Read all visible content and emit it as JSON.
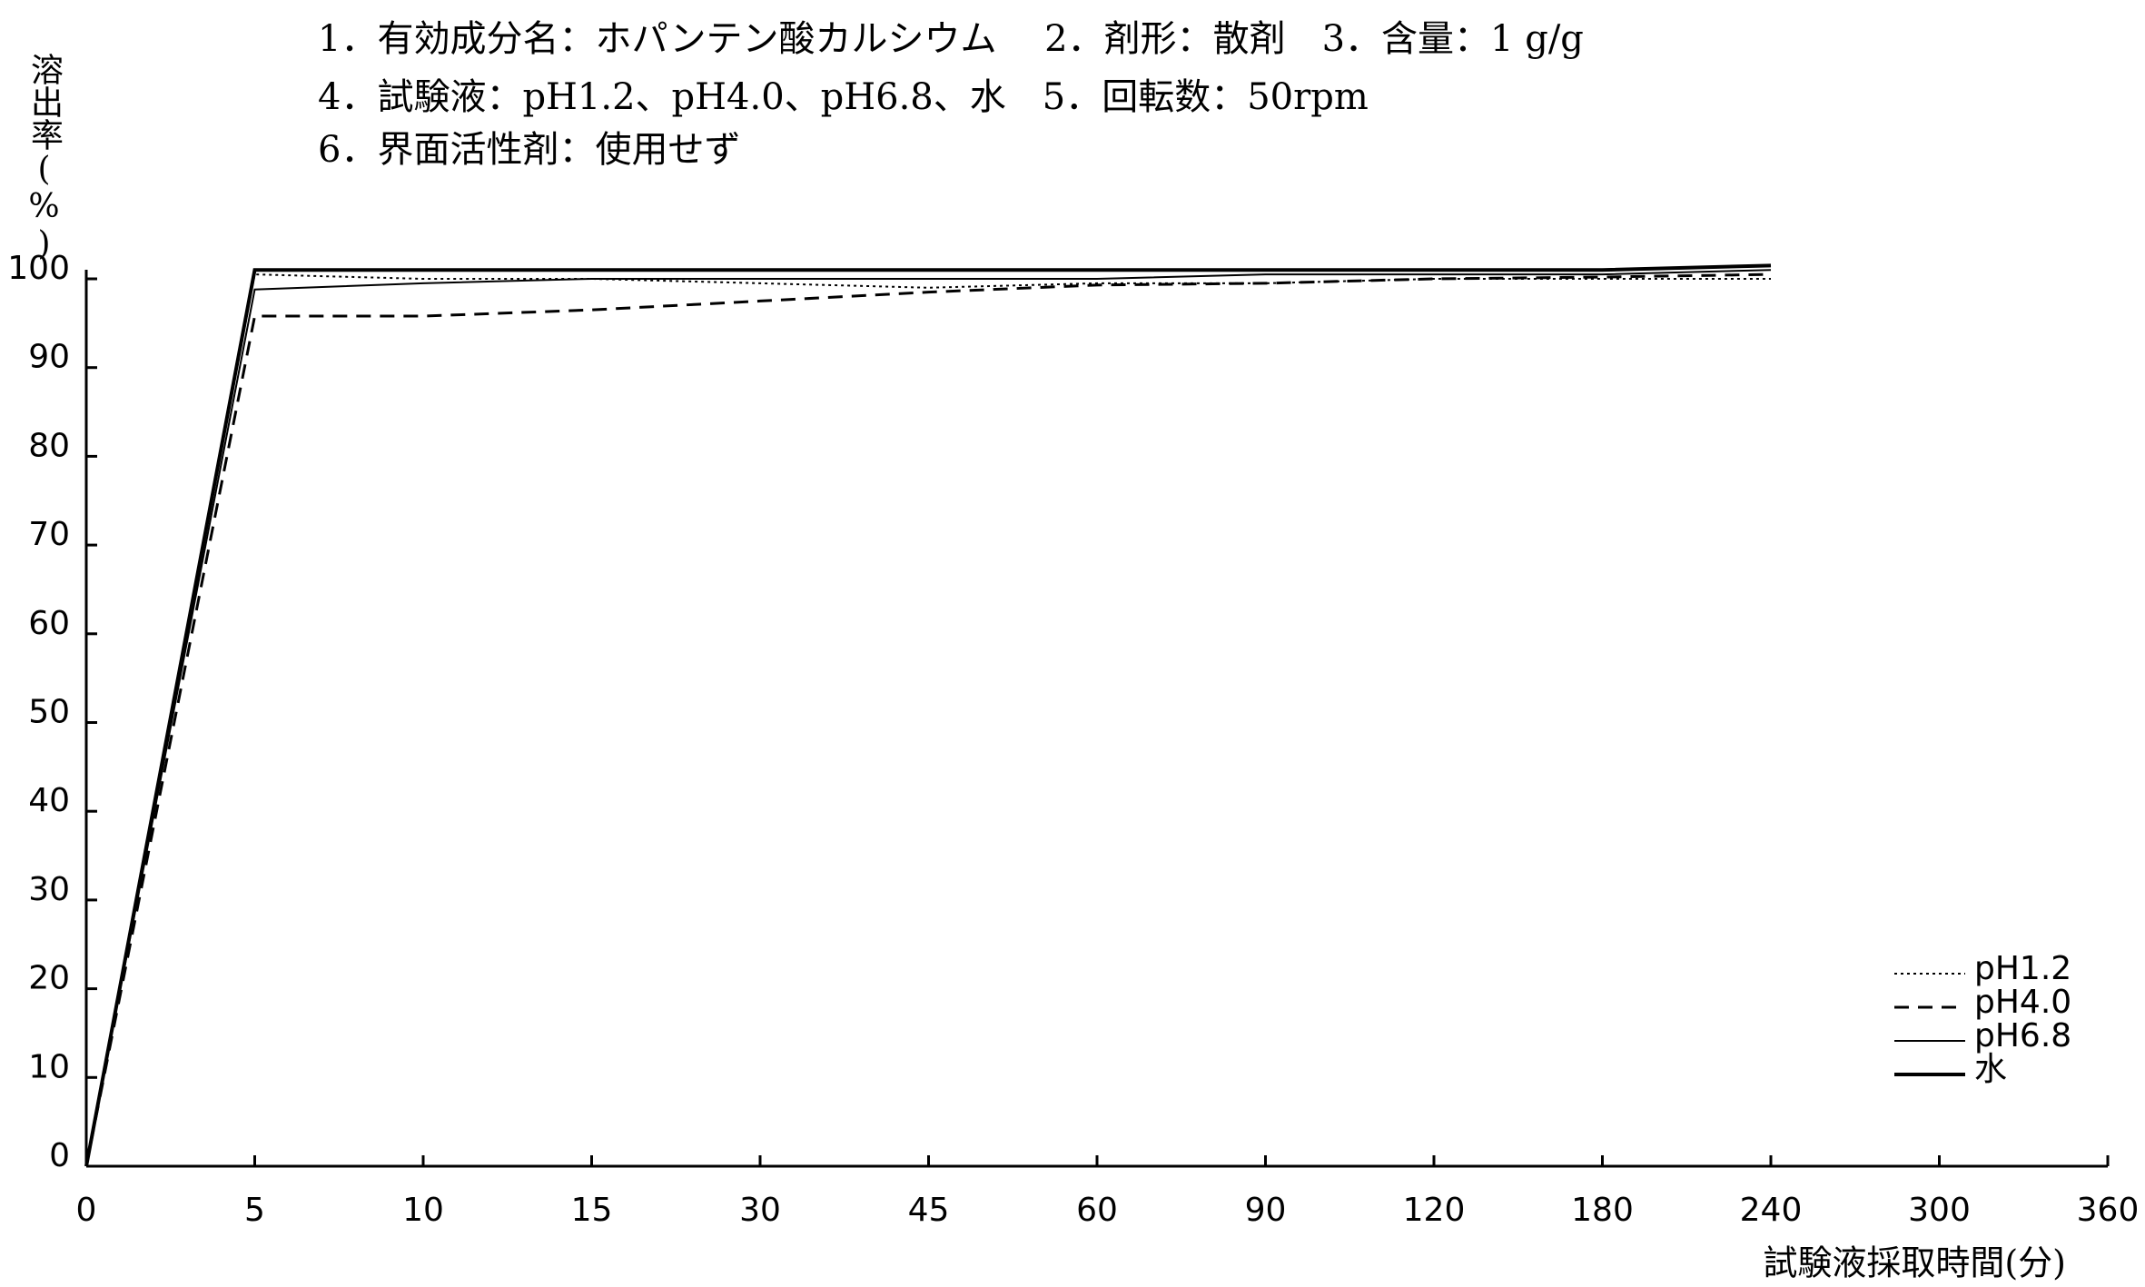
{
  "chart_data": {
    "type": "line",
    "title_lines": [
      "1．有効成分名：ホパンテン酸カルシウム　 2．剤形：散剤　3．含量：1 g/g",
      "4．試験液：pH1.2、pH4.0、pH6.8、水　5．回転数：50rpm",
      "6．界面活性剤：使用せず"
    ],
    "y_label": "溶出率(%)",
    "x_label": "試験液採取時間(分)",
    "categories": [
      "0",
      "5",
      "10",
      "15",
      "30",
      "45",
      "60",
      "90",
      "120",
      "180",
      "240",
      "300",
      "360"
    ],
    "series": [
      {
        "name": "pH1.2",
        "color": "#000000",
        "style": "dotted",
        "width": 2,
        "values": [
          0,
          100.5,
          100,
          100,
          99.5,
          99,
          99.5,
          99.5,
          100,
          100,
          100,
          null,
          null
        ]
      },
      {
        "name": "pH4.0",
        "color": "#000000",
        "style": "dashed",
        "width": 3,
        "values": [
          0,
          95.8,
          95.8,
          96.5,
          97.5,
          98.5,
          99.3,
          99.5,
          100,
          100.2,
          100.5,
          null,
          null
        ]
      },
      {
        "name": "pH6.8",
        "color": "#000000",
        "style": "solid",
        "width": 2,
        "values": [
          0,
          98.8,
          99.5,
          100,
          100,
          100,
          100,
          100.5,
          100.5,
          100.5,
          101,
          null,
          null
        ]
      },
      {
        "name": "水",
        "color": "#000000",
        "style": "solid",
        "width": 4,
        "values": [
          0,
          101,
          101,
          101,
          101,
          101,
          101,
          101,
          101,
          101,
          101.5,
          null,
          null
        ]
      }
    ],
    "ylim": [
      0,
      100
    ],
    "yticks": [
      0,
      10,
      20,
      30,
      40,
      50,
      60,
      70,
      80,
      90,
      100
    ],
    "legend": "lower right",
    "grid": false
  }
}
